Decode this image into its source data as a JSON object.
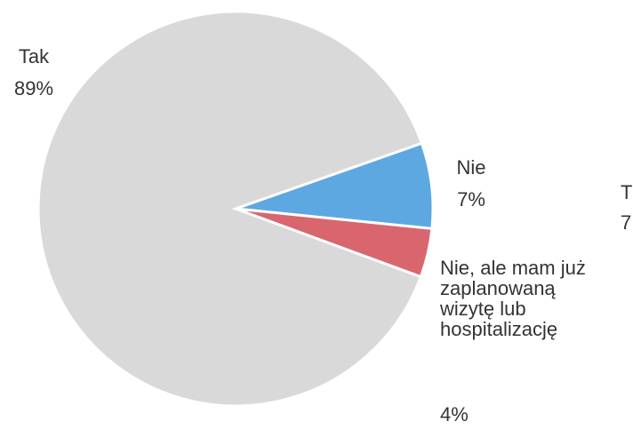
{
  "chart_data": {
    "type": "pie",
    "categories": [
      "Nie",
      "Nie, ale mam już zaplanowaną wizytę lub hospitalizację",
      "Tak"
    ],
    "values": [
      7,
      4,
      89
    ],
    "value_labels": [
      "7%",
      "4%",
      "89%"
    ],
    "colors": [
      "#5ea8e2",
      "#d9666f",
      "#d9d9d9"
    ],
    "clipped_labels": [
      "T",
      "7"
    ]
  }
}
